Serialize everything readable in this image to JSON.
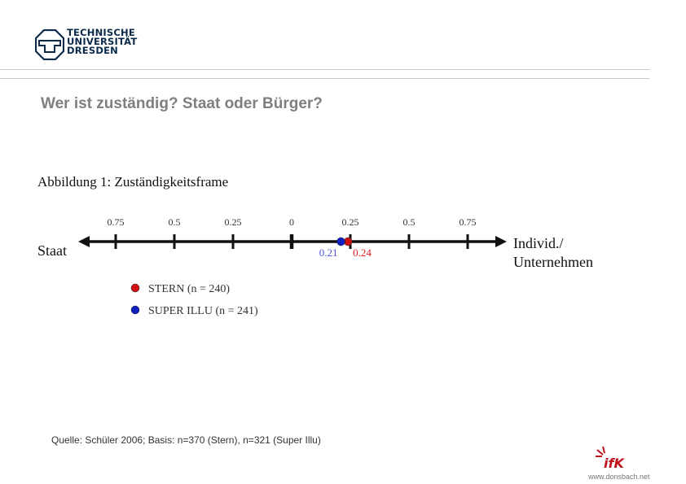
{
  "header": {
    "logo_lines": [
      "TECHNISCHE",
      "UNIVERSITÄT",
      "DRESDEN"
    ]
  },
  "slide": {
    "title": "Wer ist zuständig? Staat oder Bürger?",
    "source": "Quelle: Schüler 2006; Basis: n=370 (Stern), n=321 (Super Illu)"
  },
  "footer": {
    "brand": "ifK",
    "url": "www.donsbach.net"
  },
  "chart_data": {
    "type": "scatter",
    "title": "Abbildung 1: Zuständigkeitsframe",
    "left_label": "Staat",
    "right_label_lines": [
      "Individ./",
      "Unternehmen"
    ],
    "xlim": [
      -0.875,
      0.875
    ],
    "ticks": [
      -0.75,
      -0.5,
      -0.25,
      0,
      0.25,
      0.5,
      0.75
    ],
    "tick_labels": [
      "0.75",
      "0.5",
      "0.25",
      "0",
      "0.25",
      "0.5",
      "0.75"
    ],
    "series": [
      {
        "name": "STERN (n = 240)",
        "value": 0.24,
        "label": "0.24",
        "color": "#d01010"
      },
      {
        "name": "SUPER ILLU (n = 241)",
        "value": 0.21,
        "label": "0.21",
        "color": "#1020c0"
      }
    ]
  }
}
